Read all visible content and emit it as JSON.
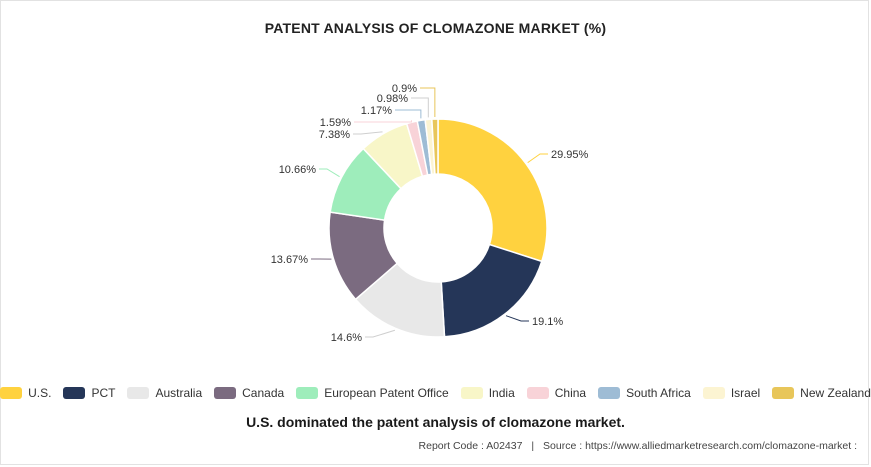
{
  "title": "PATENT ANALYSIS OF CLOMAZONE MARKET (%)",
  "caption": "U.S. dominated the patent analysis of clomazone market.",
  "footer": {
    "report_code": "Report Code : A02437",
    "separator": "|",
    "source": "Source : https://www.alliedmarketresearch.com/clomazone-market :"
  },
  "chart_data": {
    "type": "pie",
    "subtype": "donut",
    "title": "PATENT ANALYSIS OF CLOMAZONE MARKET (%)",
    "legend_position": "bottom",
    "series": [
      {
        "name": "U.S.",
        "value": 29.95,
        "label": "29.95%",
        "color": "#FFD23F"
      },
      {
        "name": "PCT",
        "value": 19.1,
        "label": "19.1%",
        "color": "#253658"
      },
      {
        "name": "Australia",
        "value": 14.6,
        "label": "14.6%",
        "color": "#E8E8E8"
      },
      {
        "name": "Canada",
        "value": 13.67,
        "label": "13.67%",
        "color": "#7B6B80"
      },
      {
        "name": "European Patent Office",
        "value": 10.66,
        "label": "10.66%",
        "color": "#9EEDBB"
      },
      {
        "name": "India",
        "value": 7.38,
        "label": "7.38%",
        "color": "#F8F6C8"
      },
      {
        "name": "China",
        "value": 1.59,
        "label": "1.59%",
        "color": "#F8D3D8"
      },
      {
        "name": "South Africa",
        "value": 1.17,
        "label": "1.17%",
        "color": "#9EBCD5"
      },
      {
        "name": "Israel",
        "value": 0.98,
        "label": "0.98%",
        "color": "#FCF4D2"
      },
      {
        "name": "New Zealand",
        "value": 0.9,
        "label": "0.9%",
        "color": "#E8C65A"
      }
    ]
  }
}
